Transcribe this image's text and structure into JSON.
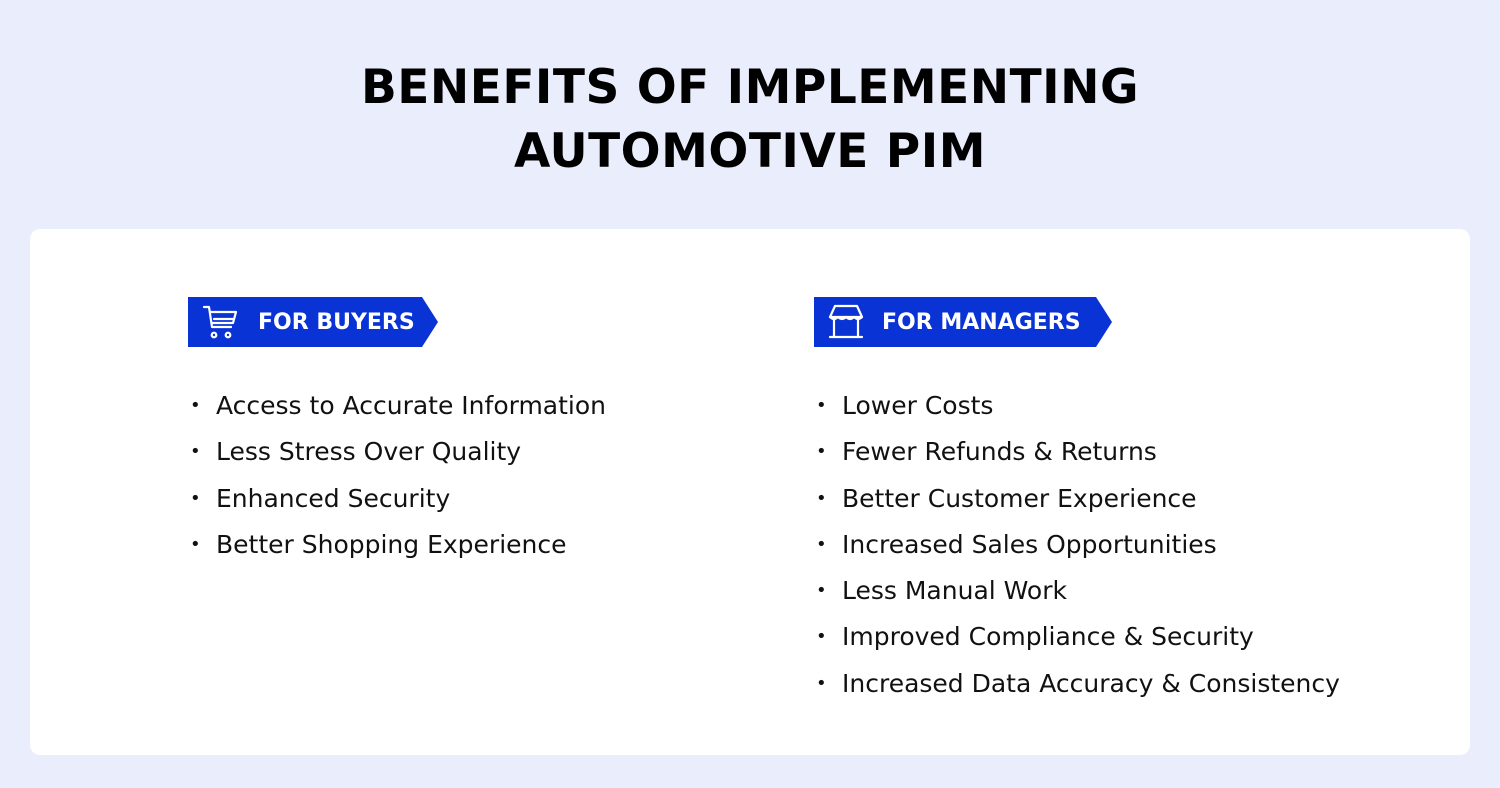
{
  "title": {
    "line1": "BENEFITS OF IMPLEMENTING",
    "line2": "AUTOMOTIVE PIM"
  },
  "colors": {
    "background": "#eaedfb",
    "card": "#ffffff",
    "badge": "#0a33d6"
  },
  "buyers": {
    "icon": "shopping-cart-icon",
    "label": "FOR BUYERS",
    "items": [
      "Access to Accurate Information",
      "Less Stress Over Quality",
      "Enhanced Security",
      "Better Shopping Experience"
    ]
  },
  "managers": {
    "icon": "storefront-icon",
    "label": "FOR MANAGERS",
    "items": [
      "Lower Costs",
      "Fewer Refunds & Returns",
      "Better Customer Experience",
      "Increased Sales Opportunities",
      "Less Manual Work",
      "Improved Compliance & Security",
      "Increased Data Accuracy & Consistency"
    ]
  }
}
